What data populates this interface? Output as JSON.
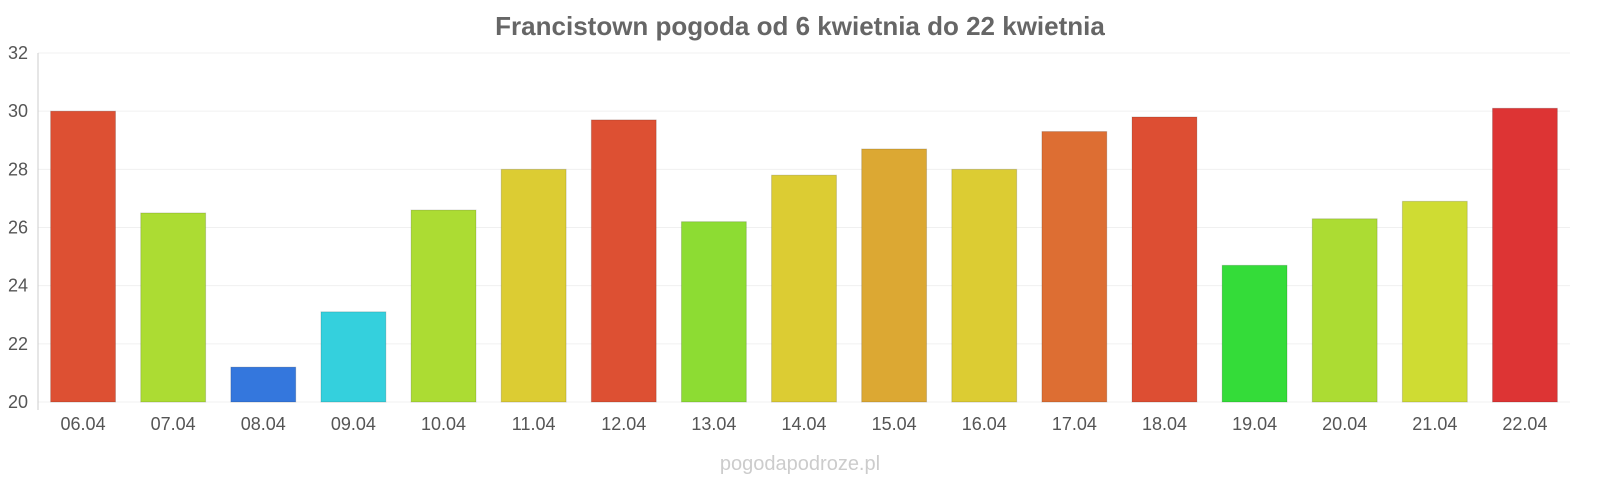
{
  "chart_data": {
    "type": "bar",
    "title": "Francistown pogoda od 6 kwietnia do 22 kwietnia",
    "xlabel": "",
    "ylabel": "",
    "categories": [
      "06.04",
      "07.04",
      "08.04",
      "09.04",
      "10.04",
      "11.04",
      "12.04",
      "13.04",
      "14.04",
      "15.04",
      "16.04",
      "17.04",
      "18.04",
      "19.04",
      "20.04",
      "21.04",
      "22.04"
    ],
    "values": [
      30.0,
      26.5,
      21.2,
      23.1,
      26.6,
      28.0,
      29.7,
      26.2,
      27.8,
      28.7,
      28.0,
      29.3,
      29.8,
      24.7,
      26.3,
      26.9,
      30.1
    ],
    "colors": [
      "#dd5033",
      "#acdc33",
      "#3477dd",
      "#34d0dd",
      "#acdc33",
      "#dccc33",
      "#dd5033",
      "#8ddc33",
      "#dccc33",
      "#dca833",
      "#dccc33",
      "#dd6e33",
      "#dd4e33",
      "#34dc39",
      "#acdc33",
      "#cfdc33",
      "#dd3434"
    ],
    "ylim": [
      20,
      32
    ],
    "yticks": [
      20,
      22,
      24,
      26,
      28,
      30,
      32
    ],
    "grid": true,
    "legend": "none"
  },
  "watermark": "pogodapodroze.pl"
}
